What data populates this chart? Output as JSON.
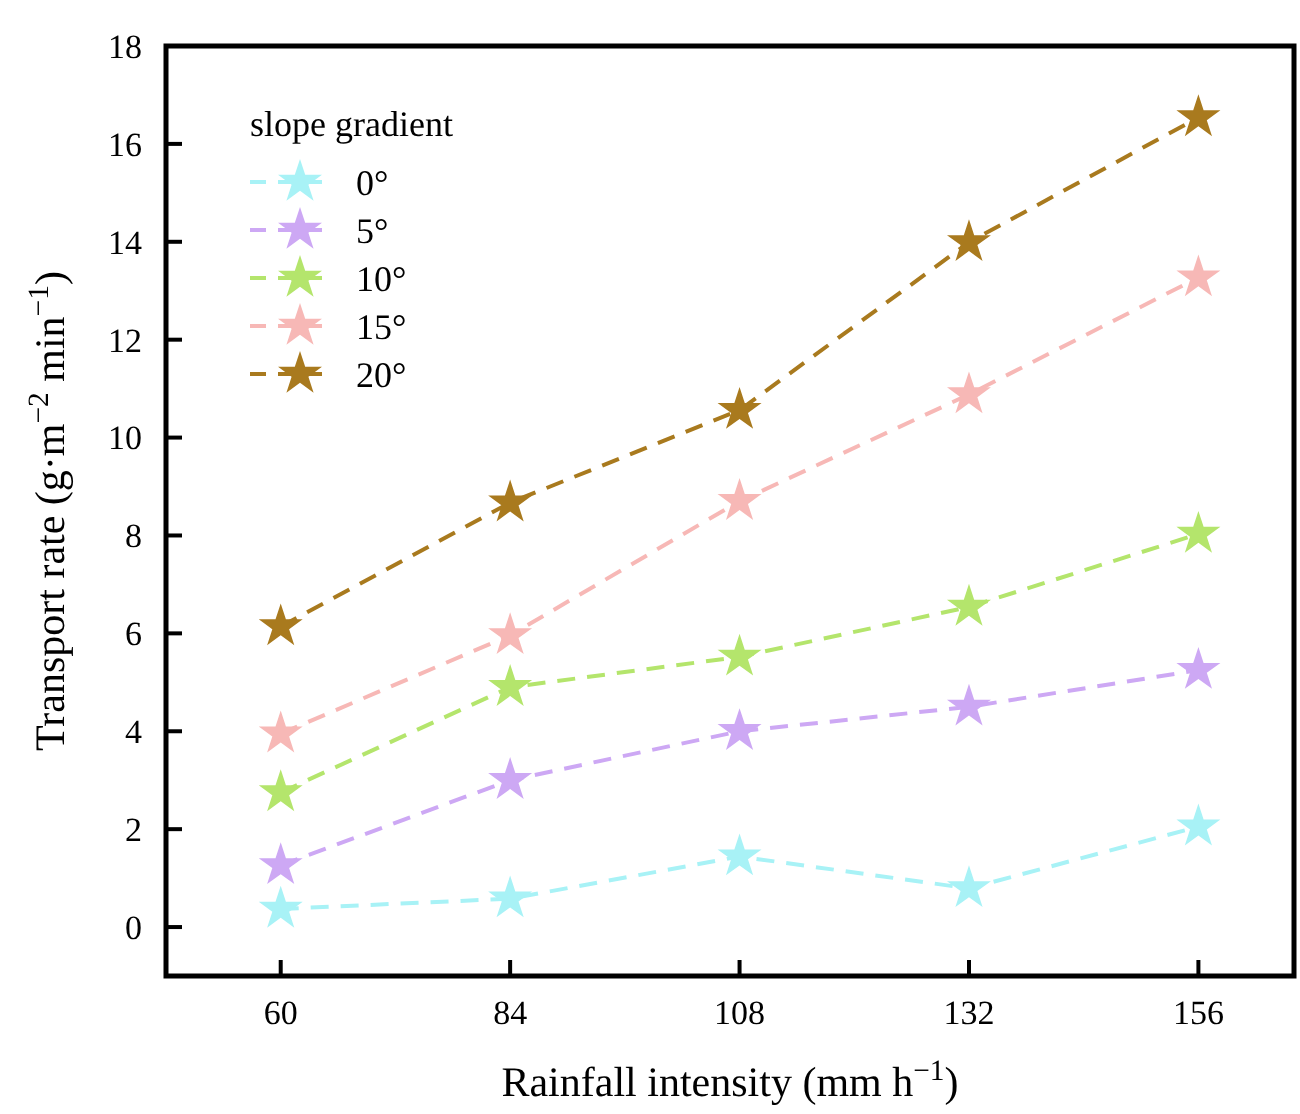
{
  "chart_data": {
    "type": "line",
    "xlabel": "Rainfall intensity (mm h$^{−1}$)",
    "ylabel": "Transport rate (g·m$^{−2}$ min$^{−1}$)",
    "legend_title": "slope gradient",
    "x": [
      60,
      84,
      108,
      132,
      156
    ],
    "series": [
      {
        "name": "0°",
        "color": "#a8f2f6",
        "values": [
          0.37,
          0.58,
          1.44,
          0.79,
          2.05
        ]
      },
      {
        "name": "5°",
        "color": "#cda8f4",
        "values": [
          1.26,
          3.0,
          4.0,
          4.5,
          5.25
        ]
      },
      {
        "name": "10°",
        "color": "#b4e56c",
        "values": [
          2.75,
          4.9,
          5.52,
          6.54,
          8.03
        ]
      },
      {
        "name": "15°",
        "color": "#f7b8b6",
        "values": [
          3.95,
          5.96,
          8.7,
          10.88,
          13.27
        ]
      },
      {
        "name": "20°",
        "color": "#a97a1e",
        "values": [
          6.14,
          8.67,
          10.56,
          13.99,
          16.54
        ]
      }
    ],
    "xlim": [
      48,
      166
    ],
    "ylim": [
      -1,
      18
    ],
    "xticks": [
      60,
      84,
      108,
      132,
      156
    ],
    "yticks": [
      0,
      2,
      4,
      6,
      8,
      10,
      12,
      14,
      16,
      18
    ],
    "legend": "top left",
    "marker": "star",
    "line_style": "dashed",
    "grid": false
  }
}
